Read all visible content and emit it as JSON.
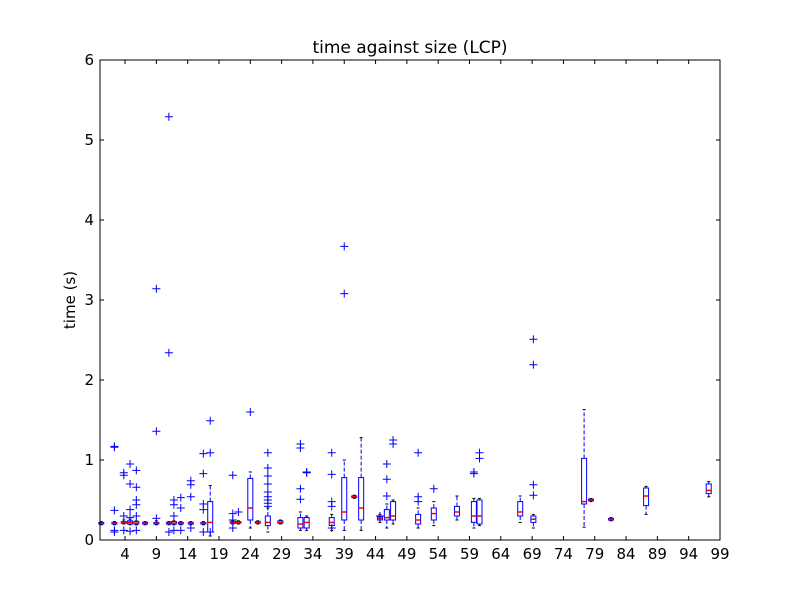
{
  "chart_data": {
    "type": "box",
    "title": "time against size (LCP)",
    "xlabel": "",
    "ylabel": "time (s)",
    "xlim": [
      0,
      99
    ],
    "ylim": [
      0,
      6
    ],
    "xticks": [
      4,
      9,
      14,
      19,
      24,
      29,
      34,
      39,
      44,
      49,
      54,
      59,
      64,
      69,
      74,
      79,
      84,
      89,
      94,
      99
    ],
    "yticks": [
      0,
      1,
      2,
      3,
      4,
      5,
      6
    ],
    "colors": {
      "box": "#0000ff",
      "median": "#ff0000",
      "flier": "#0000ff"
    },
    "boxes": [
      {
        "x": 0.2,
        "q1": 0.2,
        "med": 0.21,
        "q3": 0.22,
        "wlo": 0.19,
        "whi": 0.23,
        "fliers": []
      },
      {
        "x": 2.3,
        "q1": 0.2,
        "med": 0.21,
        "q3": 0.22,
        "wlo": 0.19,
        "whi": 0.23,
        "fliers": [
          0.37,
          1.16,
          1.17,
          0.1,
          0.12
        ]
      },
      {
        "x": 3.8,
        "q1": 0.21,
        "med": 0.22,
        "q3": 0.23,
        "wlo": 0.2,
        "whi": 0.25,
        "fliers": [
          0.81,
          0.84,
          0.3,
          0.12
        ]
      },
      {
        "x": 4.8,
        "q1": 0.2,
        "med": 0.22,
        "q3": 0.24,
        "wlo": 0.19,
        "whi": 0.26,
        "fliers": [
          0.95,
          0.7,
          0.38,
          0.11,
          0.28
        ]
      },
      {
        "x": 5.8,
        "q1": 0.2,
        "med": 0.21,
        "q3": 0.23,
        "wlo": 0.19,
        "whi": 0.24,
        "fliers": [
          0.87,
          0.66,
          0.5,
          0.44,
          0.3,
          0.12
        ]
      },
      {
        "x": 7.2,
        "q1": 0.2,
        "med": 0.21,
        "q3": 0.22,
        "wlo": 0.19,
        "whi": 0.23,
        "fliers": []
      },
      {
        "x": 9.0,
        "q1": 0.2,
        "med": 0.21,
        "q3": 0.22,
        "wlo": 0.19,
        "whi": 0.24,
        "fliers": [
          3.14,
          1.36,
          0.27
        ]
      },
      {
        "x": 11.0,
        "q1": 0.2,
        "med": 0.21,
        "q3": 0.22,
        "wlo": 0.19,
        "whi": 0.23,
        "fliers": [
          5.29,
          2.34,
          0.1
        ]
      },
      {
        "x": 11.8,
        "q1": 0.2,
        "med": 0.21,
        "q3": 0.23,
        "wlo": 0.19,
        "whi": 0.24,
        "fliers": [
          0.5,
          0.44,
          0.3,
          0.12
        ]
      },
      {
        "x": 12.9,
        "q1": 0.2,
        "med": 0.21,
        "q3": 0.22,
        "wlo": 0.19,
        "whi": 0.23,
        "fliers": [
          0.53,
          0.4,
          0.12
        ]
      },
      {
        "x": 14.5,
        "q1": 0.2,
        "med": 0.21,
        "q3": 0.22,
        "wlo": 0.19,
        "whi": 0.23,
        "fliers": [
          0.74,
          0.69,
          0.54,
          0.15
        ]
      },
      {
        "x": 16.5,
        "q1": 0.2,
        "med": 0.21,
        "q3": 0.22,
        "wlo": 0.19,
        "whi": 0.23,
        "fliers": [
          1.08,
          0.83,
          0.45,
          0.38,
          0.1
        ]
      },
      {
        "x": 17.6,
        "q1": 0.1,
        "med": 0.22,
        "q3": 0.48,
        "wlo": 0.05,
        "whi": 0.68,
        "fliers": [
          1.49,
          1.09,
          0.1
        ]
      },
      {
        "x": 21.2,
        "q1": 0.21,
        "med": 0.22,
        "q3": 0.23,
        "wlo": 0.2,
        "whi": 0.24,
        "fliers": [
          0.81,
          0.33,
          0.25,
          0.15
        ]
      },
      {
        "x": 22.1,
        "q1": 0.21,
        "med": 0.22,
        "q3": 0.23,
        "wlo": 0.2,
        "whi": 0.24,
        "fliers": [
          0.35
        ]
      },
      {
        "x": 24.0,
        "q1": 0.25,
        "med": 0.4,
        "q3": 0.77,
        "wlo": 0.15,
        "whi": 0.85,
        "fliers": [
          1.6
        ]
      },
      {
        "x": 25.2,
        "q1": 0.21,
        "med": 0.22,
        "q3": 0.23,
        "wlo": 0.2,
        "whi": 0.24,
        "fliers": []
      },
      {
        "x": 26.8,
        "q1": 0.18,
        "med": 0.22,
        "q3": 0.3,
        "wlo": 0.1,
        "whi": 0.4,
        "fliers": [
          1.09,
          0.9,
          0.8,
          0.7,
          0.6,
          0.54,
          0.5,
          0.46,
          0.42
        ]
      },
      {
        "x": 28.8,
        "q1": 0.21,
        "med": 0.22,
        "q3": 0.24,
        "wlo": 0.2,
        "whi": 0.25,
        "fliers": []
      },
      {
        "x": 32.0,
        "q1": 0.15,
        "med": 0.2,
        "q3": 0.28,
        "wlo": 0.12,
        "whi": 0.35,
        "fliers": [
          1.2,
          1.15,
          0.64,
          0.51
        ]
      },
      {
        "x": 33.0,
        "q1": 0.15,
        "med": 0.22,
        "q3": 0.28,
        "wlo": 0.12,
        "whi": 0.3,
        "fliers": [
          0.85,
          0.84
        ]
      },
      {
        "x": 37.0,
        "q1": 0.18,
        "med": 0.22,
        "q3": 0.28,
        "wlo": 0.12,
        "whi": 0.32,
        "fliers": [
          1.09,
          0.82,
          0.48,
          0.42,
          0.15
        ]
      },
      {
        "x": 39.0,
        "q1": 0.25,
        "med": 0.35,
        "q3": 0.78,
        "wlo": 0.12,
        "whi": 1.0,
        "fliers": [
          3.67,
          3.08
        ]
      },
      {
        "x": 40.6,
        "q1": 0.53,
        "med": 0.54,
        "q3": 0.55,
        "wlo": 0.52,
        "whi": 0.56,
        "fliers": []
      },
      {
        "x": 41.7,
        "q1": 0.25,
        "med": 0.4,
        "q3": 0.78,
        "wlo": 0.12,
        "whi": 1.28,
        "fliers": []
      },
      {
        "x": 44.7,
        "q1": 0.25,
        "med": 0.27,
        "q3": 0.29,
        "wlo": 0.22,
        "whi": 0.32,
        "fliers": [
          0.3
        ]
      },
      {
        "x": 45.8,
        "q1": 0.25,
        "med": 0.28,
        "q3": 0.38,
        "wlo": 0.15,
        "whi": 0.45,
        "fliers": [
          0.95,
          0.76,
          0.55
        ]
      },
      {
        "x": 46.8,
        "q1": 0.25,
        "med": 0.3,
        "q3": 0.48,
        "wlo": 0.2,
        "whi": 0.5,
        "fliers": [
          1.25,
          1.2
        ]
      },
      {
        "x": 50.8,
        "q1": 0.2,
        "med": 0.25,
        "q3": 0.32,
        "wlo": 0.15,
        "whi": 0.4,
        "fliers": [
          1.09,
          0.54,
          0.48
        ]
      },
      {
        "x": 53.3,
        "q1": 0.25,
        "med": 0.33,
        "q3": 0.4,
        "wlo": 0.18,
        "whi": 0.48,
        "fliers": [
          0.64
        ]
      },
      {
        "x": 57.0,
        "q1": 0.3,
        "med": 0.35,
        "q3": 0.42,
        "wlo": 0.25,
        "whi": 0.55,
        "fliers": []
      },
      {
        "x": 59.7,
        "q1": 0.22,
        "med": 0.3,
        "q3": 0.48,
        "wlo": 0.15,
        "whi": 0.52,
        "fliers": [
          0.85,
          0.83
        ]
      },
      {
        "x": 60.6,
        "q1": 0.2,
        "med": 0.3,
        "q3": 0.5,
        "wlo": 0.18,
        "whi": 0.52,
        "fliers": [
          1.09,
          1.02
        ]
      },
      {
        "x": 67.1,
        "q1": 0.3,
        "med": 0.35,
        "q3": 0.48,
        "wlo": 0.22,
        "whi": 0.55,
        "fliers": []
      },
      {
        "x": 69.2,
        "q1": 0.22,
        "med": 0.26,
        "q3": 0.3,
        "wlo": 0.15,
        "whi": 0.32,
        "fliers": [
          2.51,
          2.19,
          0.69,
          0.56
        ]
      },
      {
        "x": 77.3,
        "q1": 0.45,
        "med": 0.48,
        "q3": 1.02,
        "wlo": 0.16,
        "whi": 1.63,
        "fliers": []
      },
      {
        "x": 78.4,
        "q1": 0.49,
        "med": 0.5,
        "q3": 0.51,
        "wlo": 0.48,
        "whi": 0.52,
        "fliers": []
      },
      {
        "x": 81.6,
        "q1": 0.25,
        "med": 0.26,
        "q3": 0.27,
        "wlo": 0.24,
        "whi": 0.28,
        "fliers": []
      },
      {
        "x": 87.2,
        "q1": 0.43,
        "med": 0.55,
        "q3": 0.65,
        "wlo": 0.32,
        "whi": 0.67,
        "fliers": []
      },
      {
        "x": 97.2,
        "q1": 0.58,
        "med": 0.62,
        "q3": 0.7,
        "wlo": 0.54,
        "whi": 0.73,
        "fliers": []
      }
    ]
  }
}
